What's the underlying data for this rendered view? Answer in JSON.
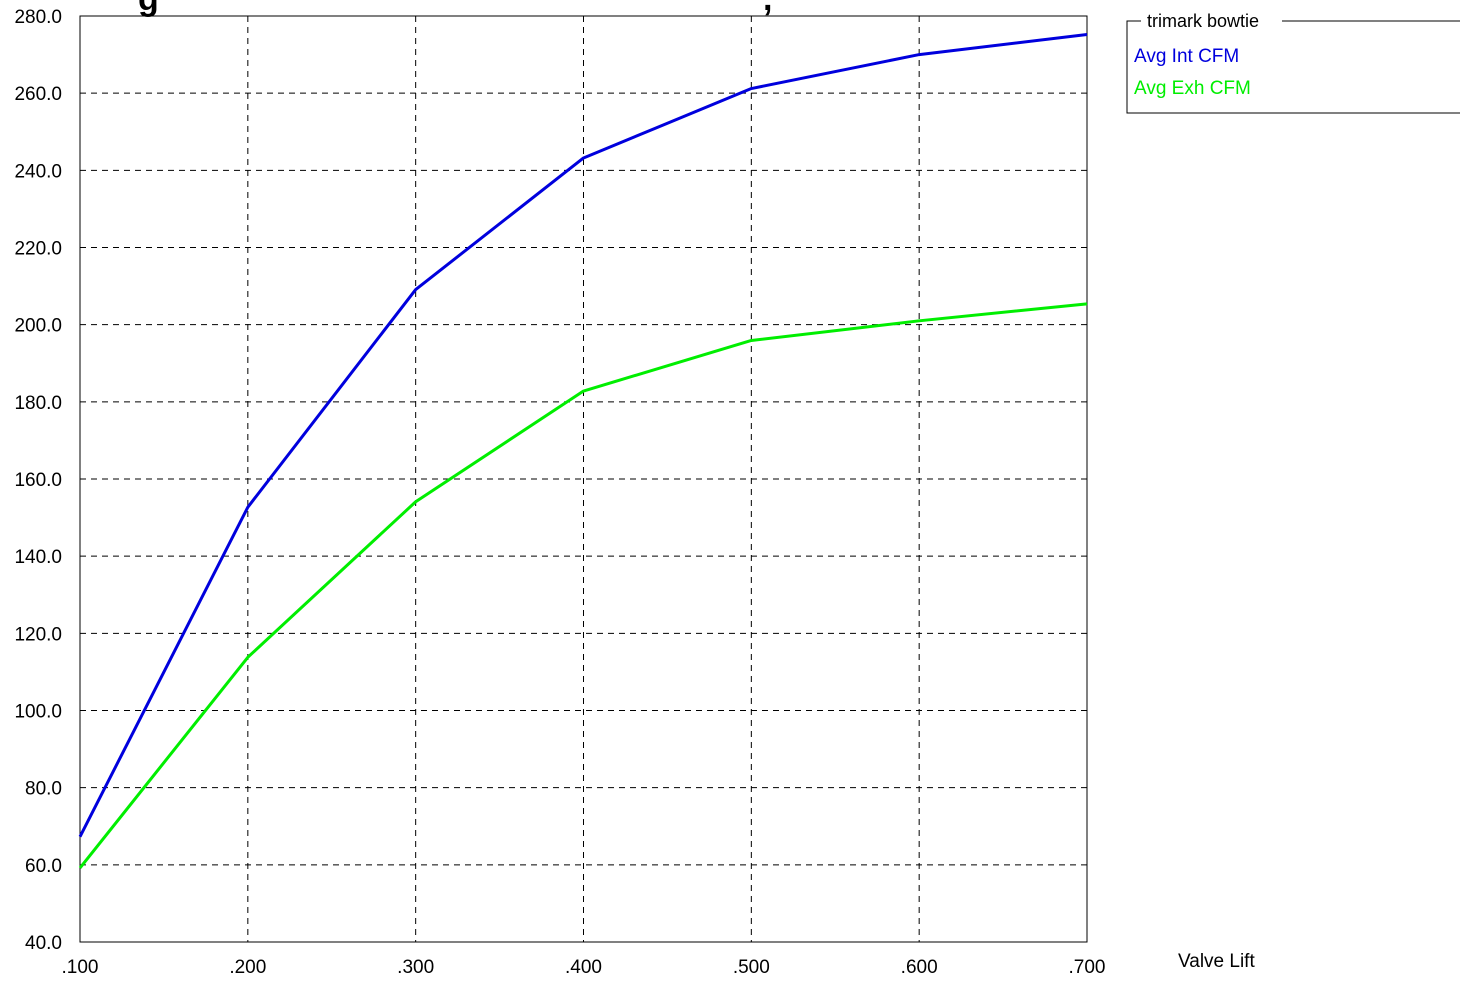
{
  "chart_data": {
    "type": "line",
    "title_fragment_left": "g",
    "title_fragment_right": ",",
    "xlabel": "Valve Lift",
    "x": [
      0.1,
      0.2,
      0.3,
      0.4,
      0.5,
      0.6,
      0.7
    ],
    "x_tick_labels": [
      ".100",
      ".200",
      ".300",
      ".400",
      ".500",
      ".600",
      ".700"
    ],
    "xlim": [
      0.1,
      0.7
    ],
    "ylim": [
      40,
      280
    ],
    "y_ticks": [
      40,
      60,
      80,
      100,
      120,
      140,
      160,
      180,
      200,
      220,
      240,
      260,
      280
    ],
    "y_tick_labels": [
      "40.0",
      "60.0",
      "80.0",
      "100.0",
      "120.0",
      "140.0",
      "160.0",
      "180.0",
      "200.0",
      "220.0",
      "240.0",
      "260.0",
      "280.0"
    ],
    "grid": true,
    "legend": {
      "title": "trimark bowtie",
      "position": "top-right, outside plot"
    },
    "series": [
      {
        "name": "Avg Int CFM",
        "color": "#0000dd",
        "values": [
          67.3,
          152.7,
          209.1,
          243.2,
          261.2,
          270.0,
          275.2
        ]
      },
      {
        "name": "Avg Exh CFM",
        "color": "#00ee00",
        "values": [
          59.2,
          113.8,
          154.1,
          182.8,
          195.9,
          201.0,
          205.4
        ]
      }
    ]
  }
}
